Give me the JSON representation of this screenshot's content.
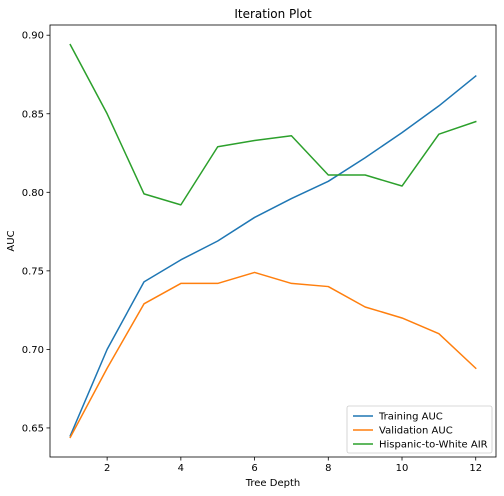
{
  "chart_data": {
    "type": "line",
    "title": "Iteration Plot",
    "xlabel": "Tree Depth",
    "ylabel": "AUC",
    "x": [
      1,
      2,
      3,
      4,
      5,
      6,
      7,
      8,
      9,
      10,
      11,
      12
    ],
    "xlim": [
      0.45,
      12.55
    ],
    "ylim": [
      0.6315,
      0.9065
    ],
    "xticks": [
      2,
      4,
      6,
      8,
      10,
      12
    ],
    "yticks": [
      0.65,
      0.7,
      0.75,
      0.8,
      0.85,
      0.9
    ],
    "ytick_labels": [
      "0.65",
      "0.70",
      "0.75",
      "0.80",
      "0.85",
      "0.90"
    ],
    "grid": false,
    "legend_position": "lower-right",
    "series": [
      {
        "name": "Training AUC",
        "color": "#1f77b4",
        "values": [
          0.645,
          0.7,
          0.743,
          0.757,
          0.769,
          0.784,
          0.796,
          0.807,
          0.822,
          0.838,
          0.855,
          0.874
        ]
      },
      {
        "name": "Validation AUC",
        "color": "#ff7f0e",
        "values": [
          0.644,
          0.688,
          0.729,
          0.742,
          0.742,
          0.749,
          0.742,
          0.74,
          0.727,
          0.72,
          0.71,
          0.688
        ]
      },
      {
        "name": "Hispanic-to-White AIR",
        "color": "#2ca02c",
        "values": [
          0.894,
          0.85,
          0.799,
          0.792,
          0.829,
          0.833,
          0.836,
          0.811,
          0.811,
          0.804,
          0.837,
          0.845
        ]
      }
    ]
  }
}
